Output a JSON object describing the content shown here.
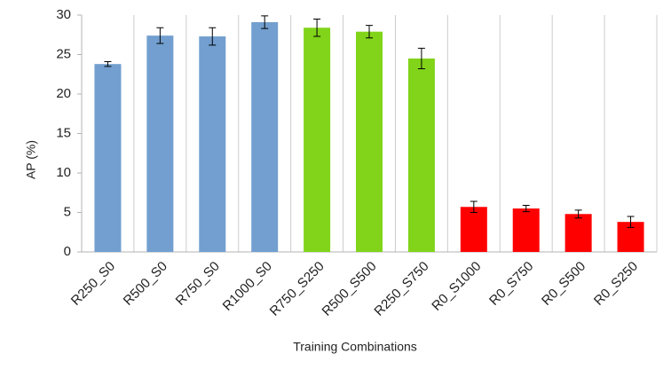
{
  "chart_data": {
    "type": "bar",
    "x_label": "Training Combinations",
    "y_label": "AP (%)",
    "categories": [
      "R250_S0",
      "R500_S0",
      "R750_S0",
      "R1000_S0",
      "R750_S250",
      "R500_S500",
      "R250_S750",
      "R0_S1000",
      "R0_S750",
      "R0_S500",
      "R0_S250"
    ],
    "values": [
      23.8,
      27.4,
      27.3,
      29.1,
      28.4,
      27.9,
      24.5,
      5.7,
      5.5,
      4.8,
      3.8
    ],
    "errors": [
      0.3,
      1.0,
      1.1,
      0.8,
      1.1,
      0.8,
      1.3,
      0.7,
      0.4,
      0.5,
      0.7
    ],
    "colors": [
      "#729fcf",
      "#729fcf",
      "#729fcf",
      "#729fcf",
      "#81d41a",
      "#81d41a",
      "#81d41a",
      "#ff0000",
      "#ff0000",
      "#ff0000",
      "#ff0000"
    ],
    "ylim": [
      0,
      30
    ],
    "yticks": [
      0,
      5,
      10,
      15,
      20,
      25,
      30
    ],
    "grid": "x"
  }
}
